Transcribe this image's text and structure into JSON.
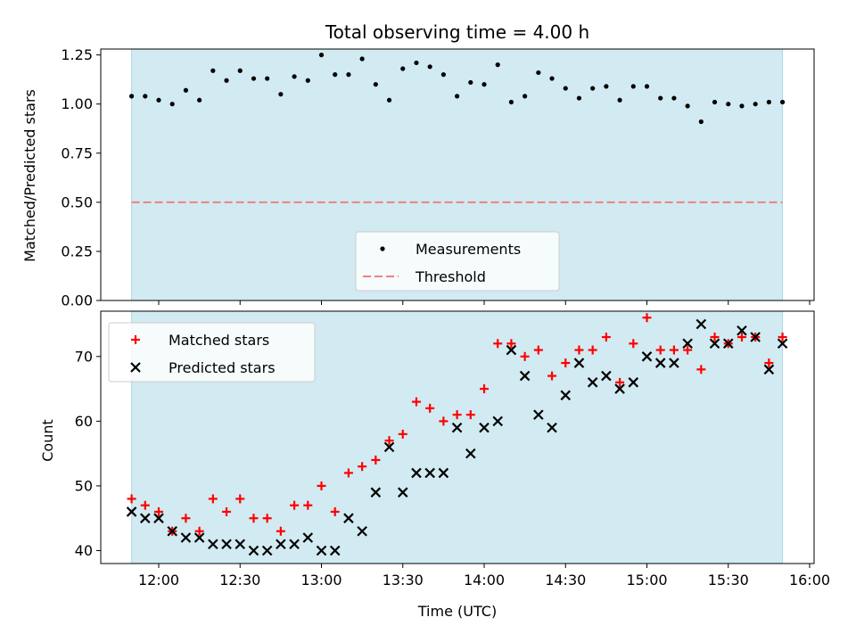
{
  "chart_data": [
    {
      "type": "scatter",
      "title": "Total observing time = 4.00 h",
      "ylabel": "Matched/Predicted stars",
      "xlabel": "",
      "ylim": [
        0,
        1.28
      ],
      "yticks": [
        "0.00",
        "0.25",
        "0.50",
        "0.75",
        "1.00",
        "1.25"
      ],
      "shaded_interval": [
        "11:50",
        "15:50"
      ],
      "shade_color": "#add8e6",
      "legend_position": "lower-center",
      "series": [
        {
          "name": "Measurements",
          "marker": "dot",
          "color": "#000000",
          "points": [
            [
              "11:50",
              1.04
            ],
            [
              "11:55",
              1.04
            ],
            [
              "12:00",
              1.02
            ],
            [
              "12:05",
              1.0
            ],
            [
              "12:10",
              1.07
            ],
            [
              "12:15",
              1.02
            ],
            [
              "12:20",
              1.17
            ],
            [
              "12:25",
              1.12
            ],
            [
              "12:30",
              1.17
            ],
            [
              "12:35",
              1.13
            ],
            [
              "12:40",
              1.13
            ],
            [
              "12:45",
              1.05
            ],
            [
              "12:50",
              1.14
            ],
            [
              "12:55",
              1.12
            ],
            [
              "13:00",
              1.25
            ],
            [
              "13:05",
              1.15
            ],
            [
              "13:10",
              1.15
            ],
            [
              "13:15",
              1.23
            ],
            [
              "13:20",
              1.1
            ],
            [
              "13:25",
              1.02
            ],
            [
              "13:30",
              1.18
            ],
            [
              "13:35",
              1.21
            ],
            [
              "13:40",
              1.19
            ],
            [
              "13:45",
              1.15
            ],
            [
              "13:50",
              1.04
            ],
            [
              "13:55",
              1.11
            ],
            [
              "14:00",
              1.1
            ],
            [
              "14:05",
              1.2
            ],
            [
              "14:10",
              1.01
            ],
            [
              "14:15",
              1.04
            ],
            [
              "14:20",
              1.16
            ],
            [
              "14:25",
              1.13
            ],
            [
              "14:30",
              1.08
            ],
            [
              "14:35",
              1.03
            ],
            [
              "14:40",
              1.08
            ],
            [
              "14:45",
              1.09
            ],
            [
              "14:50",
              1.02
            ],
            [
              "14:55",
              1.09
            ],
            [
              "15:00",
              1.09
            ],
            [
              "15:05",
              1.03
            ],
            [
              "15:10",
              1.03
            ],
            [
              "15:15",
              0.99
            ],
            [
              "15:20",
              0.91
            ],
            [
              "15:25",
              1.01
            ],
            [
              "15:30",
              1.0
            ],
            [
              "15:35",
              0.99
            ],
            [
              "15:40",
              1.0
            ],
            [
              "15:45",
              1.01
            ],
            [
              "15:50",
              1.01
            ]
          ]
        },
        {
          "name": "Threshold",
          "marker": "dashed-line",
          "color": "#f08080",
          "points": [
            [
              "11:50",
              0.5
            ],
            [
              "15:50",
              0.5
            ]
          ]
        }
      ]
    },
    {
      "type": "scatter",
      "title": "",
      "ylabel": "Count",
      "xlabel": "Time (UTC)",
      "ylim": [
        38,
        77
      ],
      "yticks": [
        "40",
        "50",
        "60",
        "70"
      ],
      "xticks": [
        "12:00",
        "12:30",
        "13:00",
        "13:30",
        "14:00",
        "14:30",
        "15:00",
        "15:30",
        "16:00"
      ],
      "shaded_interval": [
        "11:50",
        "15:50"
      ],
      "shade_color": "#add8e6",
      "legend_position": "top-left",
      "series": [
        {
          "name": "Matched stars",
          "marker": "plus",
          "color": "#ff0000",
          "points": [
            [
              "11:50",
              48
            ],
            [
              "11:55",
              47
            ],
            [
              "12:00",
              46
            ],
            [
              "12:05",
              43
            ],
            [
              "12:10",
              45
            ],
            [
              "12:15",
              43
            ],
            [
              "12:20",
              48
            ],
            [
              "12:25",
              46
            ],
            [
              "12:30",
              48
            ],
            [
              "12:35",
              45
            ],
            [
              "12:40",
              45
            ],
            [
              "12:45",
              43
            ],
            [
              "12:50",
              47
            ],
            [
              "12:55",
              47
            ],
            [
              "13:00",
              50
            ],
            [
              "13:05",
              46
            ],
            [
              "13:10",
              52
            ],
            [
              "13:15",
              53
            ],
            [
              "13:20",
              54
            ],
            [
              "13:25",
              57
            ],
            [
              "13:30",
              58
            ],
            [
              "13:35",
              63
            ],
            [
              "13:40",
              62
            ],
            [
              "13:45",
              60
            ],
            [
              "13:50",
              61
            ],
            [
              "13:55",
              61
            ],
            [
              "14:00",
              65
            ],
            [
              "14:05",
              72
            ],
            [
              "14:10",
              72
            ],
            [
              "14:15",
              70
            ],
            [
              "14:20",
              71
            ],
            [
              "14:25",
              67
            ],
            [
              "14:30",
              69
            ],
            [
              "14:35",
              71
            ],
            [
              "14:40",
              71
            ],
            [
              "14:45",
              73
            ],
            [
              "14:50",
              66
            ],
            [
              "14:55",
              72
            ],
            [
              "15:00",
              76
            ],
            [
              "15:05",
              71
            ],
            [
              "15:10",
              71
            ],
            [
              "15:15",
              71
            ],
            [
              "15:20",
              68
            ],
            [
              "15:25",
              73
            ],
            [
              "15:30",
              72
            ],
            [
              "15:35",
              73
            ],
            [
              "15:40",
              73
            ],
            [
              "15:45",
              69
            ],
            [
              "15:50",
              73
            ]
          ]
        },
        {
          "name": "Predicted stars",
          "marker": "x",
          "color": "#000000",
          "points": [
            [
              "11:50",
              46
            ],
            [
              "11:55",
              45
            ],
            [
              "12:00",
              45
            ],
            [
              "12:05",
              43
            ],
            [
              "12:10",
              42
            ],
            [
              "12:15",
              42
            ],
            [
              "12:20",
              41
            ],
            [
              "12:25",
              41
            ],
            [
              "12:30",
              41
            ],
            [
              "12:35",
              40
            ],
            [
              "12:40",
              40
            ],
            [
              "12:45",
              41
            ],
            [
              "12:50",
              41
            ],
            [
              "12:55",
              42
            ],
            [
              "13:00",
              40
            ],
            [
              "13:05",
              40
            ],
            [
              "13:10",
              45
            ],
            [
              "13:15",
              43
            ],
            [
              "13:20",
              49
            ],
            [
              "13:25",
              56
            ],
            [
              "13:30",
              49
            ],
            [
              "13:35",
              52
            ],
            [
              "13:40",
              52
            ],
            [
              "13:45",
              52
            ],
            [
              "13:50",
              59
            ],
            [
              "13:55",
              55
            ],
            [
              "14:00",
              59
            ],
            [
              "14:05",
              60
            ],
            [
              "14:10",
              71
            ],
            [
              "14:15",
              67
            ],
            [
              "14:20",
              61
            ],
            [
              "14:25",
              59
            ],
            [
              "14:30",
              64
            ],
            [
              "14:35",
              69
            ],
            [
              "14:40",
              66
            ],
            [
              "14:45",
              67
            ],
            [
              "14:50",
              65
            ],
            [
              "14:55",
              66
            ],
            [
              "15:00",
              70
            ],
            [
              "15:05",
              69
            ],
            [
              "15:10",
              69
            ],
            [
              "15:15",
              72
            ],
            [
              "15:20",
              75
            ],
            [
              "15:25",
              72
            ],
            [
              "15:30",
              72
            ],
            [
              "15:35",
              74
            ],
            [
              "15:40",
              73
            ],
            [
              "15:45",
              68
            ],
            [
              "15:50",
              72
            ]
          ]
        }
      ]
    }
  ]
}
